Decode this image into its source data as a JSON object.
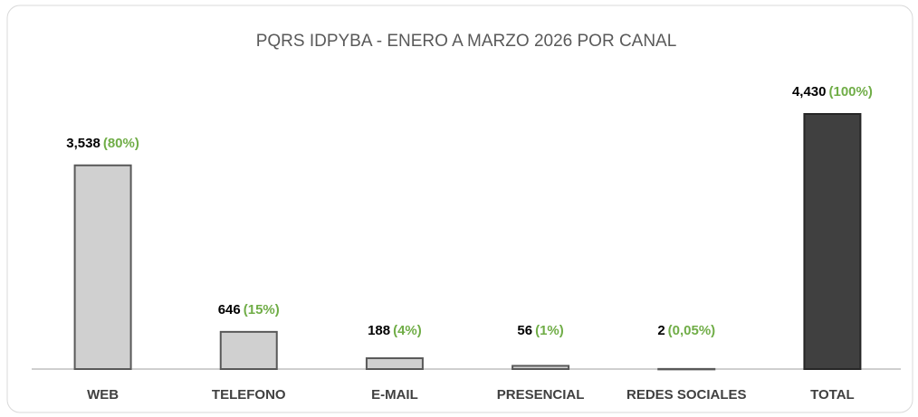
{
  "chart_data": {
    "type": "bar",
    "title": "PQRS IDPYBA - ENERO A MARZO 2026 POR CANAL",
    "categories": [
      "WEB",
      "TELEFONO",
      "E-MAIL",
      "PRESENCIAL",
      "REDES SOCIALES",
      "TOTAL"
    ],
    "values": [
      3538,
      646,
      188,
      56,
      2,
      4430
    ],
    "value_labels": [
      "3,538",
      "646",
      "188",
      "56",
      "2",
      "4,430"
    ],
    "shares": [
      80,
      15,
      4,
      1,
      0.05,
      100
    ],
    "share_labels": [
      "(80%)",
      "(15%)",
      "(4%)",
      "(1%)",
      "(0,05%)",
      "(100%)"
    ],
    "colors": [
      "#d0d0d0",
      "#d0d0d0",
      "#d0d0d0",
      "#d0d0d0",
      "#d0d0d0",
      "#404040"
    ]
  }
}
